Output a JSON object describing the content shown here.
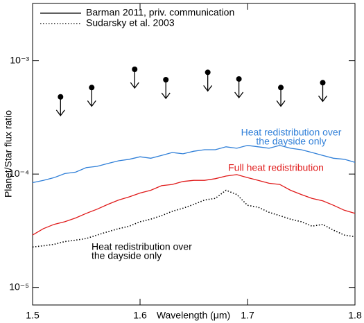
{
  "chart_data": {
    "type": "line",
    "xlabel": "Wavelength (μm)",
    "ylabel": "Planet/Star flux ratio",
    "xlim": [
      1.5,
      1.8
    ],
    "xticks": [
      1.5,
      1.6,
      1.7,
      1.8
    ],
    "ylim": [
      7e-06,
      0.0032
    ],
    "yticks": [
      {
        "value": 1e-05,
        "label": "10⁻⁵"
      },
      {
        "value": 0.0001,
        "label": "10⁻⁴"
      },
      {
        "value": 0.001,
        "label": "10⁻³"
      }
    ],
    "log_y": true,
    "legend": [
      {
        "name": "Barman 2011, priv. communication",
        "dashed": false
      },
      {
        "name": "Sudarsky et al. 2003",
        "dashed": true
      }
    ],
    "x": [
      1.5,
      1.51,
      1.52,
      1.53,
      1.54,
      1.55,
      1.56,
      1.57,
      1.58,
      1.59,
      1.6,
      1.61,
      1.62,
      1.63,
      1.64,
      1.65,
      1.66,
      1.67,
      1.68,
      1.69,
      1.7,
      1.71,
      1.72,
      1.73,
      1.74,
      1.75,
      1.76,
      1.77,
      1.78,
      1.79,
      1.8
    ],
    "series": [
      {
        "label": [
          "Heat redistribution over",
          "the dayside only"
        ],
        "color": "#2f7fd8",
        "dashed": false,
        "values": [
          8.4e-05,
          8.8e-05,
          9.3e-05,
          0.000101,
          0.000104,
          0.000114,
          0.000117,
          0.000124,
          0.000131,
          0.000135,
          0.000142,
          0.000138,
          0.000146,
          0.000155,
          0.000151,
          0.000159,
          0.000164,
          0.000164,
          0.000174,
          0.000169,
          0.000179,
          0.000174,
          0.000169,
          0.000179,
          0.000169,
          0.000164,
          0.000155,
          0.000146,
          0.000138,
          0.000135,
          0.000127
        ]
      },
      {
        "label": [
          "Full heat redistribution"
        ],
        "color": "#e01a1a",
        "dashed": false,
        "values": [
          2.9e-05,
          3.3e-05,
          3.6e-05,
          3.8e-05,
          4.1e-05,
          4.5e-05,
          4.9e-05,
          5.4e-05,
          5.9e-05,
          6.3e-05,
          6.8e-05,
          7.2e-05,
          7.9e-05,
          8.1e-05,
          8.6e-05,
          8.8e-05,
          8.8e-05,
          9.1e-05,
          9.6e-05,
          9.9e-05,
          9.3e-05,
          8.8e-05,
          8.3e-05,
          8.1e-05,
          7.2e-05,
          6.6e-05,
          6.1e-05,
          5.8e-05,
          5.3e-05,
          4.8e-05,
          4.5e-05
        ]
      },
      {
        "label": [
          "Heat redistribution over",
          "the dayside only"
        ],
        "color": "#000000",
        "dashed": true,
        "values": [
          2.27e-05,
          2.33e-05,
          2.4e-05,
          2.54e-05,
          2.61e-05,
          2.7e-05,
          2.9e-05,
          3.1e-05,
          3.3e-05,
          3.47e-05,
          3.8e-05,
          4e-05,
          4.3e-05,
          4.7e-05,
          5e-05,
          5.4e-05,
          5.9e-05,
          6.1e-05,
          7.2e-05,
          6.6e-05,
          5.3e-05,
          5.1e-05,
          4.6e-05,
          4.3e-05,
          4e-05,
          3.8e-05,
          3.47e-05,
          3.6e-05,
          3.2e-05,
          2.9e-05,
          2.8e-05
        ]
      }
    ],
    "upper_limits": {
      "color": "#000000",
      "x": [
        1.526,
        1.555,
        1.595,
        1.624,
        1.663,
        1.692,
        1.731,
        1.77
      ],
      "values": [
        0.00048,
        0.00058,
        0.00084,
        0.00068,
        0.00079,
        0.00069,
        0.00058,
        0.00064
      ]
    }
  }
}
